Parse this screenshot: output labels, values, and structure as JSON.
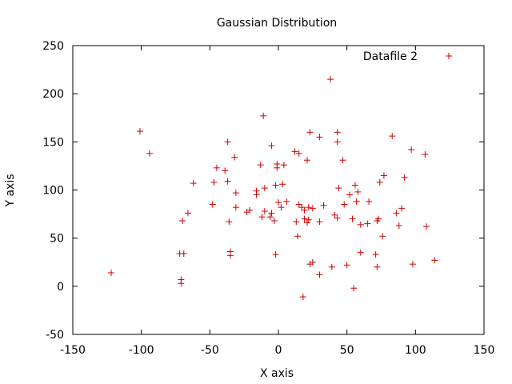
{
  "chart_data": {
    "type": "scatter",
    "title": "Gaussian Distribution",
    "xlabel": "X axis",
    "ylabel": "Y axis",
    "xlim": [
      -150,
      150
    ],
    "ylim": [
      -50,
      250
    ],
    "xticks": [
      -150,
      -100,
      -50,
      0,
      50,
      100,
      150
    ],
    "yticks": [
      -50,
      0,
      50,
      100,
      150,
      200,
      250
    ],
    "xtick_labels": [
      "-150",
      "-100",
      "-50",
      "0",
      "50",
      "100",
      "150"
    ],
    "ytick_labels": [
      "-50",
      "0",
      "50",
      "100",
      "150",
      "200",
      "250"
    ],
    "grid": false,
    "legend_position": "top-right",
    "marker": "plus",
    "color": "#cc0000",
    "series": [
      {
        "name": "Datafile 2",
        "points": [
          [
            -122,
            14
          ],
          [
            -101,
            161
          ],
          [
            -94,
            138
          ],
          [
            -72,
            34
          ],
          [
            -71,
            7
          ],
          [
            -71,
            3
          ],
          [
            -70,
            68
          ],
          [
            -69,
            34
          ],
          [
            -66,
            76
          ],
          [
            -62,
            107
          ],
          [
            -48,
            85
          ],
          [
            -47,
            108
          ],
          [
            -45,
            123
          ],
          [
            -39,
            120
          ],
          [
            -37,
            150
          ],
          [
            -37,
            109
          ],
          [
            -36,
            67
          ],
          [
            -35,
            36
          ],
          [
            -35,
            32
          ],
          [
            -32,
            134
          ],
          [
            -31,
            97
          ],
          [
            -31,
            82
          ],
          [
            -23,
            77
          ],
          [
            -21,
            79
          ],
          [
            -16,
            99
          ],
          [
            -16,
            95
          ],
          [
            -13,
            126
          ],
          [
            -12,
            72
          ],
          [
            -11,
            177
          ],
          [
            -10,
            102
          ],
          [
            -10,
            78
          ],
          [
            -6,
            72
          ],
          [
            -5,
            146
          ],
          [
            -5,
            76
          ],
          [
            -3,
            68
          ],
          [
            -2,
            33
          ],
          [
            -2,
            105
          ],
          [
            -1,
            127
          ],
          [
            -1,
            123
          ],
          [
            0,
            87
          ],
          [
            2,
            82
          ],
          [
            3,
            106
          ],
          [
            4,
            126
          ],
          [
            6,
            88
          ],
          [
            12,
            140
          ],
          [
            13,
            67
          ],
          [
            14,
            52
          ],
          [
            15,
            138
          ],
          [
            15,
            85
          ],
          [
            17,
            82
          ],
          [
            18,
            -11
          ],
          [
            19,
            70
          ],
          [
            19,
            79
          ],
          [
            21,
            66
          ],
          [
            21,
            131
          ],
          [
            22,
            82
          ],
          [
            22,
            69
          ],
          [
            23,
            160
          ],
          [
            23,
            23
          ],
          [
            25,
            25
          ],
          [
            25,
            81
          ],
          [
            30,
            155
          ],
          [
            30,
            67
          ],
          [
            30,
            12
          ],
          [
            33,
            84
          ],
          [
            38,
            215
          ],
          [
            39,
            20
          ],
          [
            41,
            74
          ],
          [
            43,
            160
          ],
          [
            43,
            150
          ],
          [
            43,
            71
          ],
          [
            44,
            102
          ],
          [
            47,
            131
          ],
          [
            48,
            85
          ],
          [
            50,
            22
          ],
          [
            52,
            95
          ],
          [
            54,
            70
          ],
          [
            55,
            -2
          ],
          [
            56,
            105
          ],
          [
            57,
            88
          ],
          [
            58,
            98
          ],
          [
            60,
            35
          ],
          [
            60,
            64
          ],
          [
            65,
            65
          ],
          [
            66,
            88
          ],
          [
            71,
            33
          ],
          [
            72,
            68
          ],
          [
            72,
            20
          ],
          [
            73,
            70
          ],
          [
            74,
            108
          ],
          [
            76,
            52
          ],
          [
            77,
            115
          ],
          [
            83,
            156
          ],
          [
            86,
            76
          ],
          [
            88,
            63
          ],
          [
            90,
            81
          ],
          [
            92,
            113
          ],
          [
            97,
            142
          ],
          [
            98,
            23
          ],
          [
            107,
            137
          ],
          [
            108,
            62
          ],
          [
            114,
            27
          ]
        ]
      }
    ]
  }
}
